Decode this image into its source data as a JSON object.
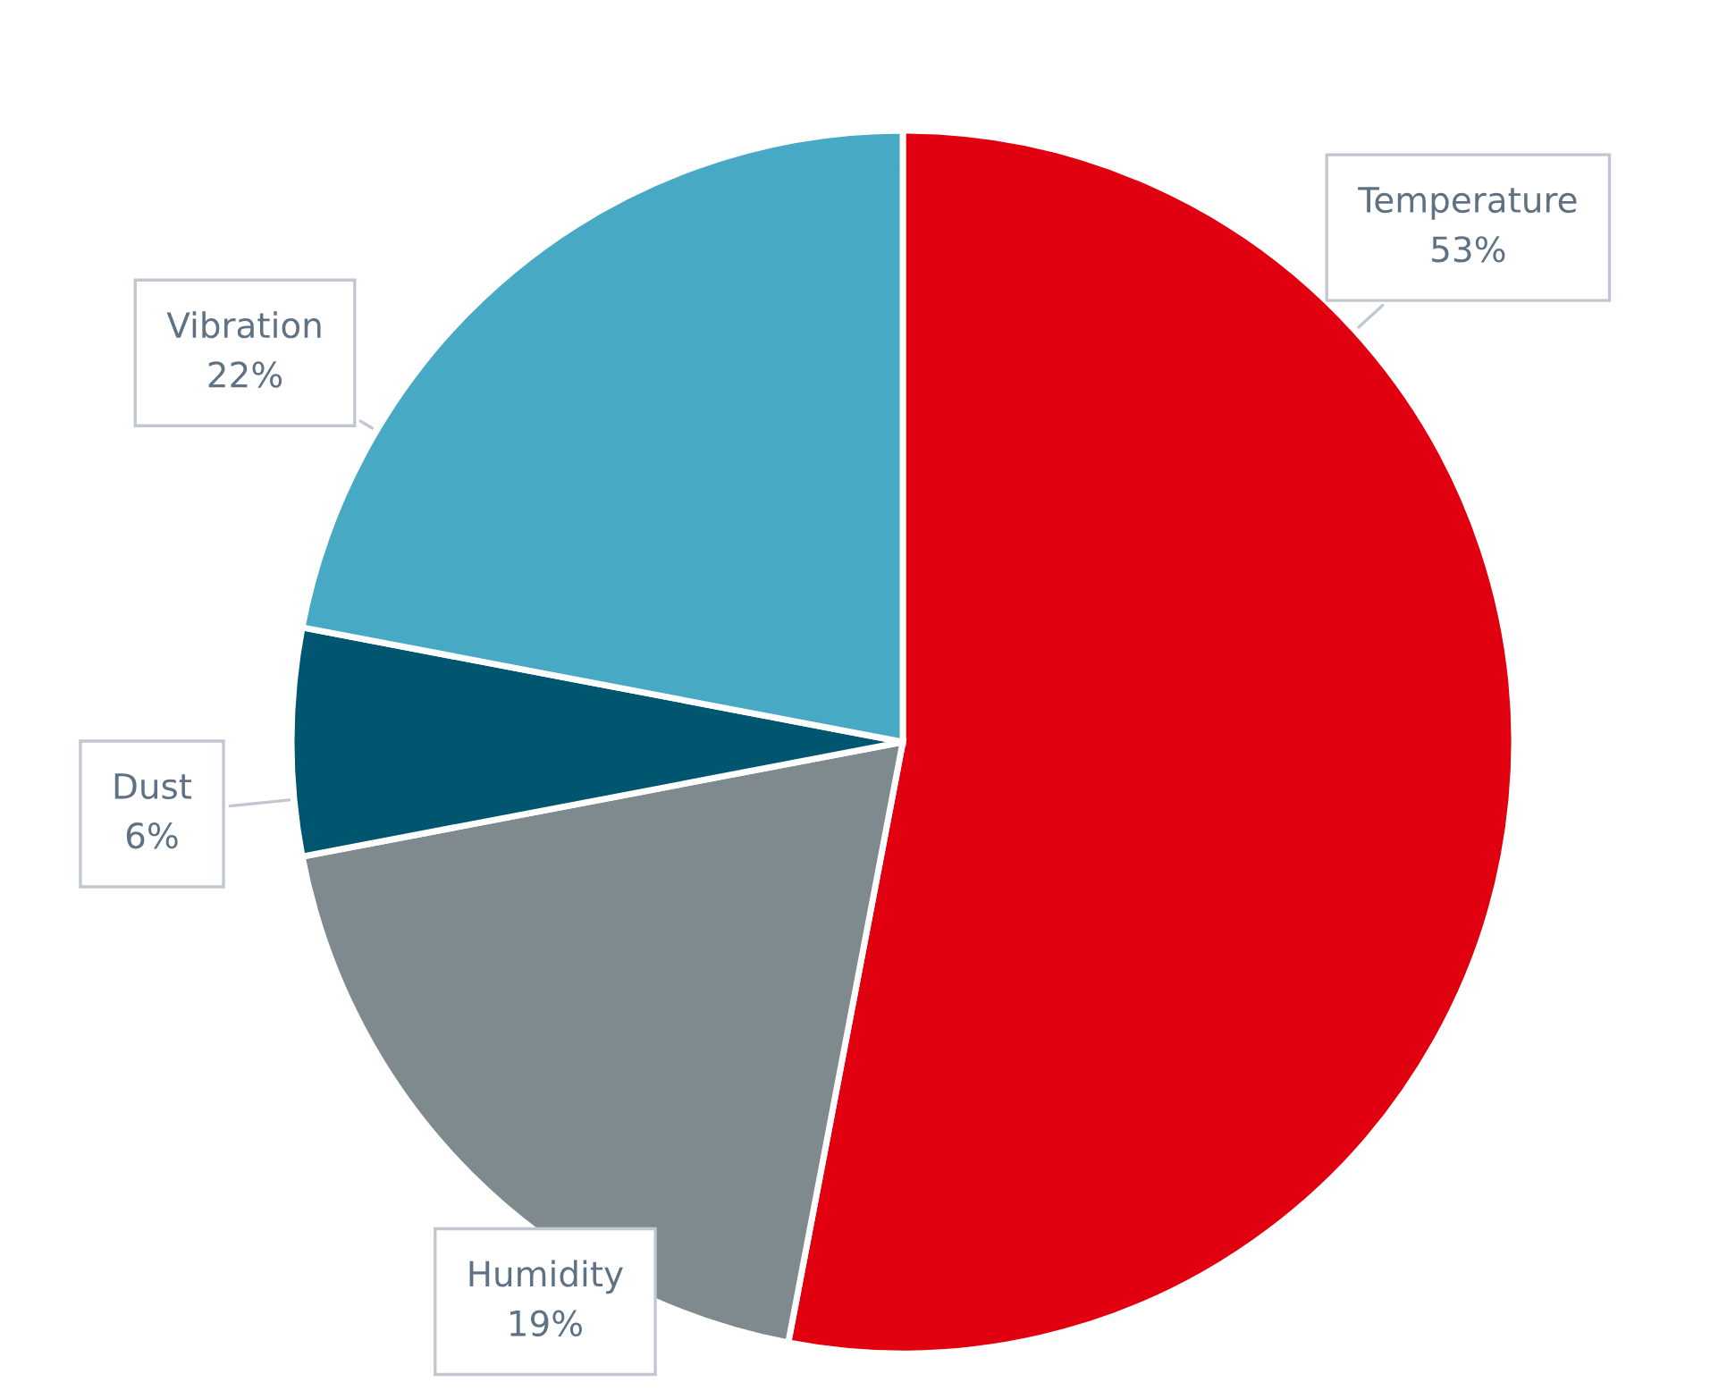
{
  "chart_data": {
    "type": "pie",
    "categories": [
      "Temperature",
      "Humidity",
      "Dust",
      "Vibration"
    ],
    "values": [
      53,
      19,
      6,
      22
    ],
    "value_labels": [
      "53%",
      "19%",
      "6%",
      "22%"
    ],
    "colors": [
      "#e1000f",
      "#7f8a8f",
      "#00556f",
      "#48a9c5"
    ],
    "legend": false
  }
}
